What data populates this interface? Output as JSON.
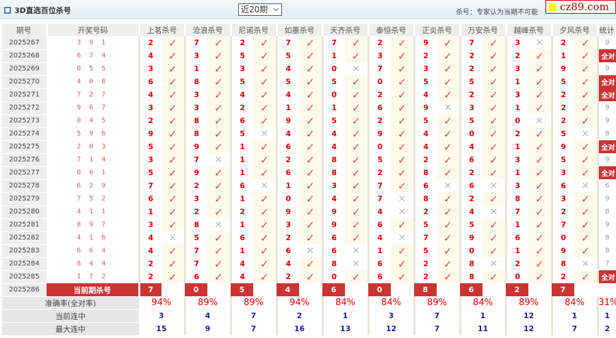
{
  "header": {
    "title": "3D直选百位杀号",
    "select_value": "近20期",
    "note": "杀号：专家认为当期不可能",
    "logo_text": "cz89.com"
  },
  "columns": {
    "period": "期号",
    "draw": "开奖号码",
    "experts": [
      "上茗杀号",
      "沧浪杀号",
      "尼诺杀号",
      "如墨杀号",
      "天齐杀号",
      "泰恒杀号",
      "正炎杀号",
      "万安杀号",
      "越峰杀号",
      "夕风杀号"
    ],
    "stat": "统计"
  },
  "colors": {
    "accent": "#cc3333",
    "hit": "#e0444e",
    "miss": "#bbbbbb",
    "blue": "#1a1aa0"
  },
  "rows": [
    {
      "period": "2025267",
      "draw": "3 9 1",
      "kills": [
        2,
        7,
        2,
        7,
        7,
        2,
        9,
        7,
        3,
        2
      ],
      "hits": [
        1,
        1,
        1,
        1,
        1,
        1,
        1,
        1,
        0,
        1
      ],
      "stat": "9"
    },
    {
      "period": "2025268",
      "draw": "6 7 4",
      "kills": [
        4,
        3,
        5,
        5,
        1,
        3,
        2,
        2,
        2,
        1
      ],
      "hits": [
        1,
        1,
        1,
        1,
        1,
        1,
        1,
        1,
        1,
        1
      ],
      "stat": "全对"
    },
    {
      "period": "2025269",
      "draw": "0 5 5",
      "kills": [
        3,
        1,
        3,
        4,
        0,
        7,
        3,
        2,
        3,
        9
      ],
      "hits": [
        1,
        1,
        1,
        1,
        0,
        1,
        1,
        1,
        1,
        1
      ],
      "stat": "9"
    },
    {
      "period": "2025270",
      "draw": "4 0 8",
      "kills": [
        6,
        8,
        5,
        5,
        5,
        0,
        5,
        5,
        1,
        5
      ],
      "hits": [
        1,
        1,
        1,
        1,
        1,
        1,
        1,
        1,
        1,
        1
      ],
      "stat": "全对"
    },
    {
      "period": "2025271",
      "draw": "7 2 7",
      "kills": [
        4,
        3,
        4,
        4,
        0,
        2,
        4,
        2,
        3,
        2
      ],
      "hits": [
        1,
        1,
        1,
        1,
        1,
        1,
        1,
        1,
        1,
        1
      ],
      "stat": "全对"
    },
    {
      "period": "2025272",
      "draw": "9 6 7",
      "kills": [
        3,
        3,
        2,
        1,
        1,
        6,
        9,
        3,
        1,
        2
      ],
      "hits": [
        1,
        1,
        1,
        1,
        1,
        1,
        0,
        1,
        1,
        1
      ],
      "stat": "9"
    },
    {
      "period": "2025273",
      "draw": "0 4 5",
      "kills": [
        2,
        8,
        6,
        9,
        5,
        2,
        5,
        5,
        0,
        2
      ],
      "hits": [
        1,
        1,
        1,
        1,
        1,
        1,
        1,
        1,
        0,
        1
      ],
      "stat": "9"
    },
    {
      "period": "2025274",
      "draw": "5 9 6",
      "kills": [
        9,
        8,
        5,
        4,
        4,
        9,
        4,
        0,
        2,
        5
      ],
      "hits": [
        1,
        1,
        0,
        1,
        1,
        1,
        1,
        1,
        1,
        0
      ],
      "stat": "8"
    },
    {
      "period": "2025275",
      "draw": "2 0 3",
      "kills": [
        5,
        9,
        1,
        6,
        4,
        0,
        4,
        4,
        1,
        9
      ],
      "hits": [
        1,
        1,
        1,
        1,
        1,
        1,
        1,
        1,
        1,
        1
      ],
      "stat": "全对"
    },
    {
      "period": "2025276",
      "draw": "7 1 4",
      "kills": [
        3,
        7,
        1,
        2,
        8,
        5,
        2,
        6,
        3,
        5
      ],
      "hits": [
        1,
        0,
        1,
        1,
        1,
        1,
        1,
        1,
        1,
        1
      ],
      "stat": "9"
    },
    {
      "period": "2025277",
      "draw": "0 6 1",
      "kills": [
        5,
        9,
        1,
        6,
        8,
        2,
        8,
        2,
        1,
        3
      ],
      "hits": [
        1,
        1,
        1,
        1,
        1,
        1,
        1,
        1,
        1,
        1
      ],
      "stat": "全对"
    },
    {
      "period": "2025278",
      "draw": "6 2 9",
      "kills": [
        7,
        2,
        6,
        1,
        3,
        7,
        6,
        6,
        3,
        6
      ],
      "hits": [
        1,
        1,
        0,
        1,
        1,
        1,
        0,
        0,
        1,
        0
      ],
      "stat": "6"
    },
    {
      "period": "2025279",
      "draw": "7 5 2",
      "kills": [
        6,
        3,
        1,
        0,
        4,
        7,
        8,
        2,
        8,
        3
      ],
      "hits": [
        1,
        1,
        1,
        1,
        1,
        0,
        1,
        1,
        1,
        1
      ],
      "stat": "9"
    },
    {
      "period": "2025280",
      "draw": "4 1 1",
      "kills": [
        1,
        2,
        2,
        9,
        9,
        4,
        2,
        4,
        7,
        2
      ],
      "hits": [
        1,
        1,
        1,
        1,
        1,
        0,
        1,
        0,
        1,
        1
      ],
      "stat": "8"
    },
    {
      "period": "2025281",
      "draw": "8 9 7",
      "kills": [
        3,
        8,
        1,
        3,
        9,
        6,
        5,
        5,
        1,
        7
      ],
      "hits": [
        1,
        0,
        1,
        1,
        1,
        1,
        1,
        1,
        1,
        1
      ],
      "stat": "9"
    },
    {
      "period": "2025282",
      "draw": "4 1 6",
      "kills": [
        4,
        5,
        6,
        2,
        6,
        4,
        7,
        9,
        6,
        0
      ],
      "hits": [
        0,
        1,
        1,
        1,
        1,
        0,
        1,
        1,
        1,
        1
      ],
      "stat": "8"
    },
    {
      "period": "2025283",
      "draw": "6 6 4",
      "kills": [
        4,
        7,
        1,
        6,
        6,
        1,
        5,
        0,
        1,
        9
      ],
      "hits": [
        1,
        1,
        1,
        0,
        0,
        1,
        1,
        1,
        1,
        1
      ],
      "stat": "8"
    },
    {
      "period": "2025284",
      "draw": "8 4 4",
      "kills": [
        2,
        7,
        4,
        4,
        8,
        6,
        2,
        8,
        2,
        8
      ],
      "hits": [
        1,
        1,
        1,
        1,
        0,
        1,
        1,
        0,
        1,
        0
      ],
      "stat": "7"
    },
    {
      "period": "2025285",
      "draw": "1 7 2",
      "kills": [
        2,
        6,
        4,
        2,
        0,
        6,
        2,
        8,
        0,
        2
      ],
      "hits": [
        1,
        1,
        1,
        1,
        1,
        1,
        1,
        1,
        1,
        1
      ],
      "stat": "全对"
    }
  ],
  "current": {
    "period": "2025286",
    "label": "当前期杀号",
    "kills": [
      7,
      0,
      5,
      4,
      6,
      0,
      8,
      6,
      2,
      7
    ]
  },
  "summary": {
    "accuracy": {
      "label": "准确率(全对率)",
      "values": [
        "94%",
        "89%",
        "89%",
        "94%",
        "84%",
        "84%",
        "89%",
        "84%",
        "89%",
        "84%"
      ],
      "stat": "31%"
    },
    "current_streak": {
      "label": "当前连中",
      "values": [
        "3",
        "4",
        "7",
        "2",
        "1",
        "3",
        "7",
        "1",
        "12",
        "1"
      ],
      "stat": "1"
    },
    "max_streak": {
      "label": "最大连中",
      "values": [
        "15",
        "9",
        "7",
        "16",
        "13",
        "12",
        "7",
        "11",
        "12",
        "7"
      ],
      "stat": "2"
    }
  }
}
